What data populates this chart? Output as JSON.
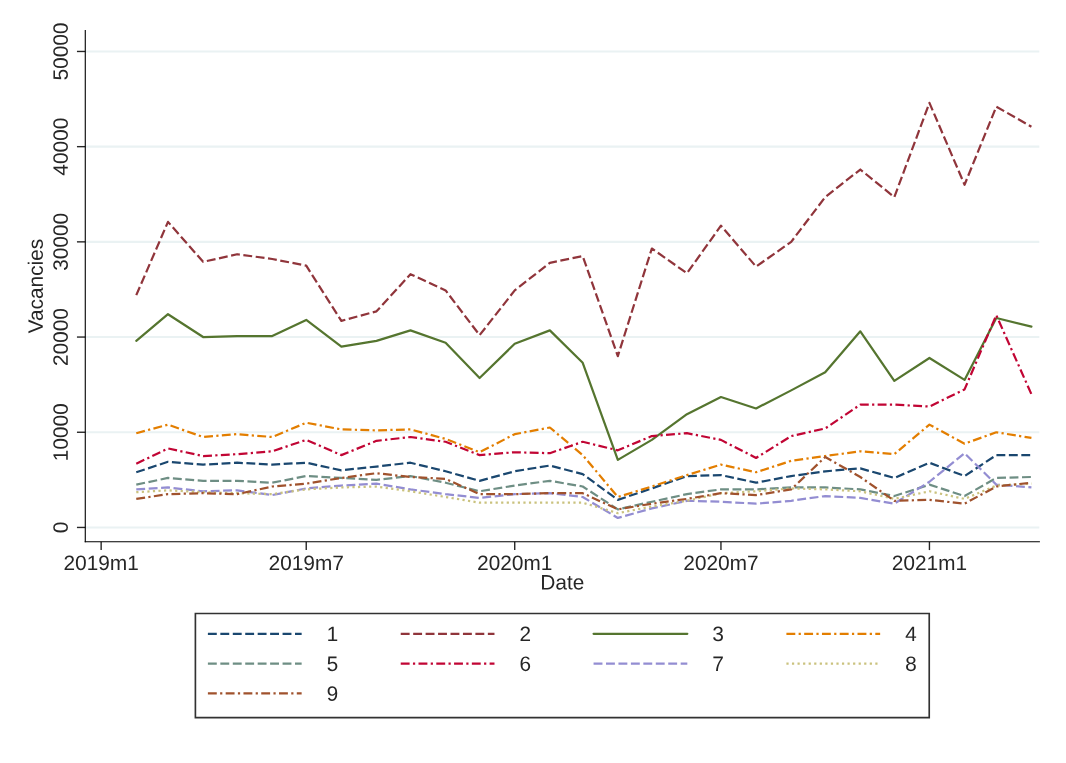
{
  "chart_data": {
    "type": "line",
    "xlabel": "Date",
    "ylabel": "Vacancies",
    "x": [
      "2019-02",
      "2019-03",
      "2019-04",
      "2019-05",
      "2019-06",
      "2019-07",
      "2019-08",
      "2019-09",
      "2019-10",
      "2019-11",
      "2019-12",
      "2020-01",
      "2020-02",
      "2020-03",
      "2020-04",
      "2020-05",
      "2020-06",
      "2020-07",
      "2020-08",
      "2020-09",
      "2020-10",
      "2020-11",
      "2020-12",
      "2021-01",
      "2021-02",
      "2021-03",
      "2021-04"
    ],
    "xlim": [
      "2018-12-18",
      "2021-04-08"
    ],
    "xticks": [
      {
        "value": "2019-01",
        "label": "2019m1"
      },
      {
        "value": "2019-07",
        "label": "2019m7"
      },
      {
        "value": "2020-01",
        "label": "2020m1"
      },
      {
        "value": "2020-07",
        "label": "2020m7"
      },
      {
        "value": "2021-01",
        "label": "2021m1"
      }
    ],
    "ylim": [
      -1500,
      52200
    ],
    "yticks": [
      0,
      10000,
      20000,
      30000,
      40000,
      50000
    ],
    "grid": "y",
    "legend": "bottom",
    "series": [
      {
        "name": "1",
        "color": "#1a476f",
        "line_style": "dashed",
        "values": [
          5800,
          6900,
          6600,
          6800,
          6600,
          6800,
          6000,
          6400,
          6800,
          5900,
          4900,
          5900,
          6500,
          5600,
          2900,
          4100,
          5400,
          5500,
          4700,
          5400,
          5900,
          6200,
          5200,
          6800,
          5400,
          7600,
          7600
        ]
      },
      {
        "name": "2",
        "color": "#90353b",
        "line_style": "dashed",
        "values": [
          24400,
          32100,
          27900,
          28700,
          28200,
          27500,
          21700,
          22700,
          26600,
          24900,
          20200,
          24900,
          27800,
          28500,
          18000,
          29300,
          26700,
          31700,
          27400,
          30000,
          34700,
          37600,
          34700,
          44600,
          36000,
          44200,
          42100
        ]
      },
      {
        "name": "3",
        "color": "#55752f",
        "line_style": "solid",
        "values": [
          19600,
          22400,
          20000,
          20100,
          20100,
          21800,
          19000,
          19600,
          20700,
          19400,
          15700,
          19300,
          20700,
          17300,
          7100,
          9200,
          11900,
          13700,
          12500,
          14400,
          16300,
          20600,
          15400,
          17800,
          15500,
          22000,
          21100
        ]
      },
      {
        "name": "4",
        "color": "#e37e00",
        "line_style": "dashdot",
        "values": [
          9900,
          10800,
          9500,
          9800,
          9500,
          11000,
          10300,
          10200,
          10300,
          9300,
          7900,
          9800,
          10500,
          7600,
          3200,
          4300,
          5500,
          6600,
          5800,
          7000,
          7500,
          8000,
          7700,
          10800,
          8800,
          10000,
          9400
        ]
      },
      {
        "name": "5",
        "color": "#6e8e84",
        "line_style": "dashed",
        "values": [
          4500,
          5200,
          4900,
          4900,
          4700,
          5400,
          5200,
          5000,
          5400,
          4700,
          3800,
          4400,
          4900,
          4300,
          1900,
          2700,
          3500,
          4000,
          4000,
          4200,
          4200,
          4000,
          3300,
          4500,
          3300,
          5200,
          5300
        ]
      },
      {
        "name": "6",
        "color": "#c10534",
        "line_style": "dashdot",
        "values": [
          6700,
          8300,
          7500,
          7700,
          8000,
          9200,
          7600,
          9100,
          9500,
          9000,
          7600,
          7900,
          7800,
          9000,
          8100,
          9600,
          9900,
          9200,
          7300,
          9600,
          10400,
          12900,
          12900,
          12700,
          14500,
          22300,
          14000
        ]
      },
      {
        "name": "7",
        "color": "#938dd2",
        "line_style": "dashed",
        "values": [
          4000,
          4200,
          3800,
          3900,
          3400,
          4100,
          4400,
          4600,
          4000,
          3500,
          3100,
          3500,
          3600,
          3200,
          1000,
          2000,
          2800,
          2700,
          2500,
          2800,
          3300,
          3100,
          2500,
          4800,
          7800,
          4500,
          4200
        ]
      },
      {
        "name": "8",
        "color": "#cac27e",
        "line_style": "dotted",
        "values": [
          3700,
          3900,
          3700,
          3600,
          3500,
          4000,
          4200,
          4300,
          3800,
          3200,
          2600,
          2600,
          2600,
          2600,
          1500,
          2200,
          2800,
          3600,
          3800,
          4100,
          4000,
          3800,
          3000,
          3800,
          3000,
          4400,
          4600
        ]
      },
      {
        "name": "9",
        "color": "#a0522d",
        "line_style": "dashdot",
        "values": [
          3000,
          3500,
          3600,
          3500,
          4300,
          4600,
          5200,
          5700,
          5300,
          5100,
          3500,
          3500,
          3600,
          3600,
          1900,
          2500,
          3000,
          3600,
          3400,
          4000,
          7400,
          5300,
          2800,
          2900,
          2500,
          4300,
          4700
        ]
      }
    ]
  }
}
